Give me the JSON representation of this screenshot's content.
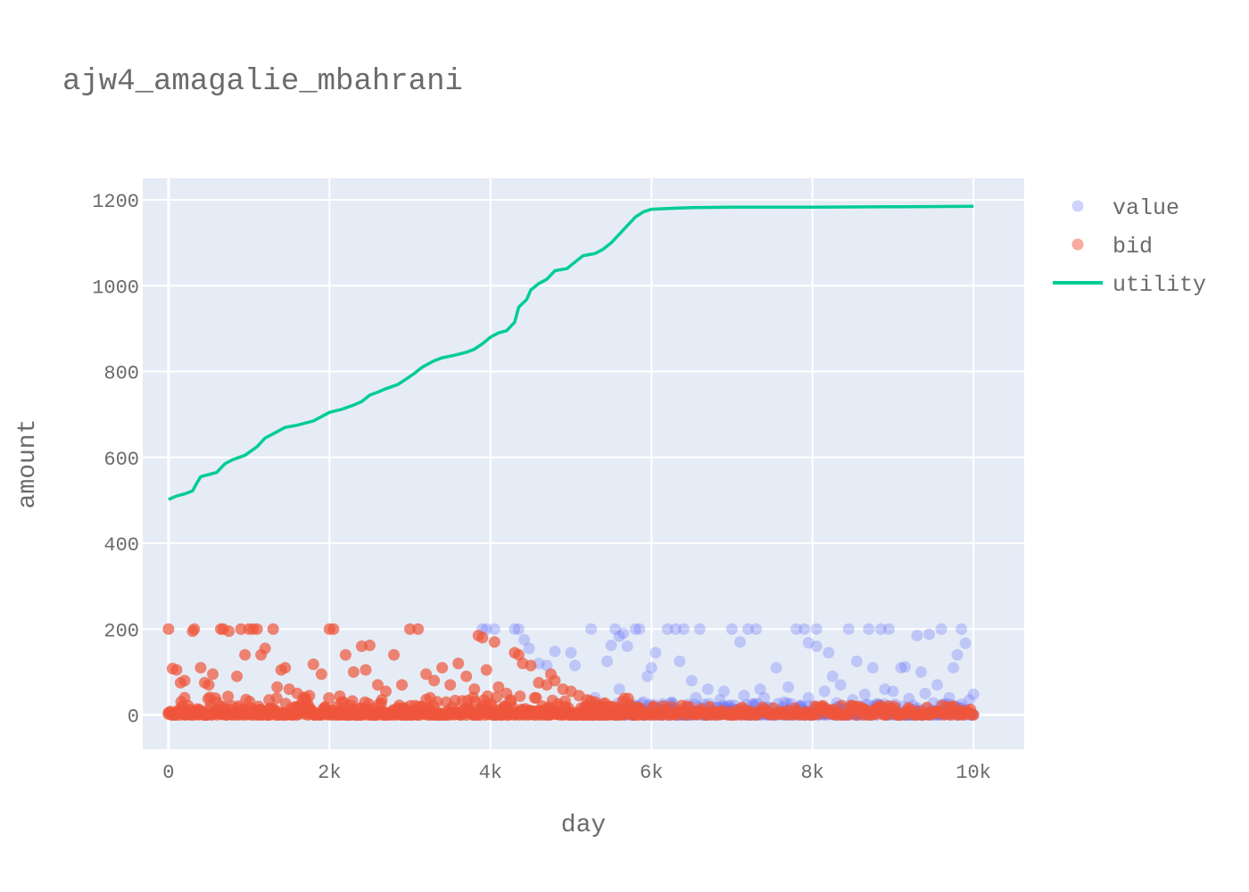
{
  "chart_data": {
    "type": "scatter",
    "title": "ajw4_amagalie_mbahrani",
    "xlabel": "day",
    "ylabel": "amount",
    "xlim": [
      -320,
      10630
    ],
    "ylim": [
      -80,
      1250
    ],
    "x_ticks": [
      0,
      2000,
      4000,
      6000,
      8000,
      10000
    ],
    "x_tick_labels": [
      "0",
      "2k",
      "4k",
      "6k",
      "8k",
      "10k"
    ],
    "y_ticks": [
      0,
      200,
      400,
      600,
      800,
      1000,
      1200
    ],
    "y_tick_labels": [
      "0",
      "200",
      "400",
      "600",
      "800",
      "1000",
      "1200"
    ],
    "grid": true,
    "legend_position": "right",
    "colors": {
      "plot_bg": "#e5ecf6",
      "grid": "#ffffff",
      "value": "#636efa",
      "bid": "#ef553b",
      "utility": "#00cc96"
    },
    "series": [
      {
        "name": "value",
        "mode": "markers",
        "opacity": 0.3,
        "points": [
          [
            3900,
            200
          ],
          [
            3950,
            200
          ],
          [
            4050,
            200
          ],
          [
            4300,
            200
          ],
          [
            4350,
            200
          ],
          [
            4420,
            175
          ],
          [
            4480,
            155
          ],
          [
            4600,
            120
          ],
          [
            4700,
            115
          ],
          [
            4800,
            148
          ],
          [
            5000,
            145
          ],
          [
            5050,
            115
          ],
          [
            5250,
            200
          ],
          [
            5450,
            125
          ],
          [
            5500,
            162
          ],
          [
            5550,
            200
          ],
          [
            5600,
            183
          ],
          [
            5650,
            190
          ],
          [
            5700,
            160
          ],
          [
            5800,
            200
          ],
          [
            5850,
            200
          ],
          [
            5950,
            90
          ],
          [
            6000,
            110
          ],
          [
            6050,
            145
          ],
          [
            6200,
            200
          ],
          [
            6300,
            200
          ],
          [
            6400,
            200
          ],
          [
            6350,
            125
          ],
          [
            6600,
            200
          ],
          [
            6500,
            80
          ],
          [
            6700,
            60
          ],
          [
            6900,
            55
          ],
          [
            7000,
            200
          ],
          [
            7100,
            170
          ],
          [
            7200,
            200
          ],
          [
            7300,
            200
          ],
          [
            7400,
            40
          ],
          [
            7550,
            110
          ],
          [
            7800,
            200
          ],
          [
            7900,
            200
          ],
          [
            7950,
            168
          ],
          [
            8050,
            160
          ],
          [
            8050,
            200
          ],
          [
            8200,
            145
          ],
          [
            8250,
            90
          ],
          [
            8450,
            200
          ],
          [
            8550,
            125
          ],
          [
            8700,
            200
          ],
          [
            8750,
            110
          ],
          [
            8850,
            200
          ],
          [
            8950,
            200
          ],
          [
            9000,
            55
          ],
          [
            9100,
            110
          ],
          [
            9150,
            112
          ],
          [
            9300,
            185
          ],
          [
            9350,
            100
          ],
          [
            9450,
            188
          ],
          [
            9600,
            200
          ],
          [
            9750,
            110
          ],
          [
            9800,
            140
          ],
          [
            9850,
            200
          ],
          [
            9900,
            167
          ],
          [
            10000,
            48
          ],
          [
            6150,
            20
          ],
          [
            6250,
            30
          ],
          [
            6450,
            15
          ],
          [
            6550,
            40
          ],
          [
            6650,
            25
          ],
          [
            6750,
            10
          ],
          [
            6850,
            35
          ],
          [
            6950,
            20
          ],
          [
            7050,
            12
          ],
          [
            7150,
            45
          ],
          [
            7250,
            25
          ],
          [
            7350,
            60
          ],
          [
            7450,
            18
          ],
          [
            7650,
            30
          ],
          [
            7700,
            65
          ],
          [
            7850,
            22
          ],
          [
            7950,
            40
          ],
          [
            8100,
            15
          ],
          [
            8150,
            55
          ],
          [
            8300,
            28
          ],
          [
            8350,
            70
          ],
          [
            8400,
            12
          ],
          [
            8500,
            35
          ],
          [
            8600,
            20
          ],
          [
            8650,
            48
          ],
          [
            8800,
            26
          ],
          [
            8900,
            60
          ],
          [
            9050,
            15
          ],
          [
            9200,
            38
          ],
          [
            9250,
            22
          ],
          [
            9400,
            50
          ],
          [
            9500,
            28
          ],
          [
            9550,
            70
          ],
          [
            9650,
            18
          ],
          [
            9700,
            40
          ],
          [
            9850,
            25
          ],
          [
            9950,
            35
          ],
          [
            5300,
            40
          ],
          [
            5600,
            60
          ],
          [
            5750,
            25
          ],
          [
            5900,
            30
          ],
          [
            6050,
            15
          ]
        ]
      },
      {
        "name": "bid",
        "mode": "markers",
        "opacity": 0.7,
        "points": [
          [
            0,
            200
          ],
          [
            50,
            108
          ],
          [
            100,
            105
          ],
          [
            150,
            75
          ],
          [
            200,
            80
          ],
          [
            300,
            195
          ],
          [
            320,
            200
          ],
          [
            400,
            110
          ],
          [
            450,
            75
          ],
          [
            500,
            70
          ],
          [
            550,
            95
          ],
          [
            650,
            200
          ],
          [
            680,
            200
          ],
          [
            750,
            195
          ],
          [
            850,
            90
          ],
          [
            900,
            200
          ],
          [
            950,
            140
          ],
          [
            1000,
            200
          ],
          [
            1050,
            200
          ],
          [
            1100,
            200
          ],
          [
            1150,
            140
          ],
          [
            1200,
            155
          ],
          [
            1300,
            200
          ],
          [
            1350,
            65
          ],
          [
            1400,
            105
          ],
          [
            1450,
            110
          ],
          [
            1500,
            60
          ],
          [
            1600,
            50
          ],
          [
            1700,
            40
          ],
          [
            1800,
            118
          ],
          [
            1900,
            95
          ],
          [
            2000,
            200
          ],
          [
            2050,
            200
          ],
          [
            2200,
            140
          ],
          [
            2300,
            100
          ],
          [
            2400,
            160
          ],
          [
            2450,
            105
          ],
          [
            2500,
            162
          ],
          [
            2600,
            70
          ],
          [
            2700,
            55
          ],
          [
            2800,
            140
          ],
          [
            2900,
            70
          ],
          [
            3000,
            200
          ],
          [
            3100,
            200
          ],
          [
            3200,
            95
          ],
          [
            3300,
            80
          ],
          [
            3400,
            110
          ],
          [
            3500,
            70
          ],
          [
            3600,
            120
          ],
          [
            3700,
            90
          ],
          [
            3800,
            60
          ],
          [
            3850,
            185
          ],
          [
            3900,
            180
          ],
          [
            3950,
            105
          ],
          [
            4050,
            170
          ],
          [
            4100,
            65
          ],
          [
            4200,
            50
          ],
          [
            4300,
            145
          ],
          [
            4350,
            140
          ],
          [
            4400,
            120
          ],
          [
            4500,
            115
          ],
          [
            4600,
            75
          ],
          [
            4700,
            70
          ],
          [
            4750,
            95
          ],
          [
            4800,
            80
          ],
          [
            4900,
            60
          ],
          [
            5000,
            55
          ],
          [
            5100,
            45
          ],
          [
            5200,
            35
          ],
          [
            5300,
            30
          ],
          [
            5400,
            25
          ],
          [
            5500,
            20
          ],
          [
            5600,
            15
          ],
          [
            5700,
            10
          ],
          [
            5800,
            8
          ],
          [
            200,
            40
          ],
          [
            600,
            30
          ],
          [
            1250,
            35
          ],
          [
            1750,
            45
          ],
          [
            2150,
            30
          ],
          [
            2650,
            35
          ],
          [
            3250,
            40
          ],
          [
            3450,
            30
          ],
          [
            4250,
            35
          ],
          [
            4550,
            40
          ]
        ]
      },
      {
        "name": "utility",
        "mode": "lines",
        "points": [
          [
            0,
            502
          ],
          [
            100,
            510
          ],
          [
            200,
            515
          ],
          [
            300,
            522
          ],
          [
            350,
            540
          ],
          [
            400,
            555
          ],
          [
            500,
            560
          ],
          [
            600,
            565
          ],
          [
            700,
            585
          ],
          [
            800,
            595
          ],
          [
            950,
            605
          ],
          [
            1100,
            625
          ],
          [
            1200,
            645
          ],
          [
            1350,
            660
          ],
          [
            1450,
            670
          ],
          [
            1600,
            675
          ],
          [
            1800,
            685
          ],
          [
            2000,
            705
          ],
          [
            2150,
            712
          ],
          [
            2300,
            722
          ],
          [
            2400,
            730
          ],
          [
            2500,
            745
          ],
          [
            2600,
            752
          ],
          [
            2700,
            760
          ],
          [
            2850,
            770
          ],
          [
            2950,
            782
          ],
          [
            3050,
            795
          ],
          [
            3150,
            810
          ],
          [
            3300,
            825
          ],
          [
            3400,
            832
          ],
          [
            3550,
            838
          ],
          [
            3700,
            845
          ],
          [
            3800,
            852
          ],
          [
            3900,
            865
          ],
          [
            4000,
            880
          ],
          [
            4100,
            890
          ],
          [
            4200,
            895
          ],
          [
            4300,
            915
          ],
          [
            4350,
            950
          ],
          [
            4450,
            968
          ],
          [
            4500,
            990
          ],
          [
            4600,
            1005
          ],
          [
            4700,
            1015
          ],
          [
            4800,
            1035
          ],
          [
            4950,
            1040
          ],
          [
            5050,
            1055
          ],
          [
            5150,
            1070
          ],
          [
            5300,
            1075
          ],
          [
            5400,
            1085
          ],
          [
            5500,
            1100
          ],
          [
            5600,
            1120
          ],
          [
            5700,
            1140
          ],
          [
            5800,
            1160
          ],
          [
            5900,
            1172
          ],
          [
            6000,
            1178
          ],
          [
            6200,
            1180
          ],
          [
            6500,
            1182
          ],
          [
            7000,
            1183
          ],
          [
            8000,
            1183
          ],
          [
            9000,
            1184
          ],
          [
            10000,
            1185
          ]
        ]
      }
    ]
  }
}
